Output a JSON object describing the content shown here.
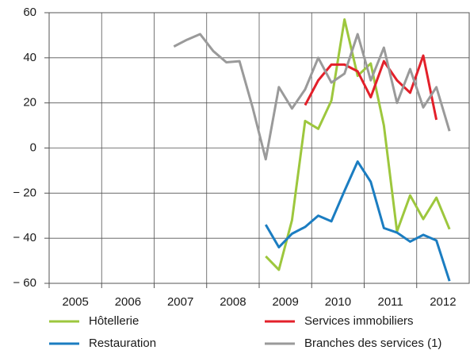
{
  "chart_data": {
    "type": "line",
    "x": [
      2007.375,
      2007.625,
      2007.875,
      2008.125,
      2008.375,
      2008.625,
      2008.875,
      2009.125,
      2009.375,
      2009.625,
      2009.875,
      2010.125,
      2010.375,
      2010.625,
      2010.875,
      2011.125,
      2011.375,
      2011.625,
      2011.875,
      2012.125,
      2012.375,
      2012.625
    ],
    "series": [
      {
        "name": "Hôtellerie",
        "color": "#9dc73d",
        "values": [
          null,
          null,
          null,
          null,
          null,
          null,
          null,
          -48,
          -54,
          -32,
          12,
          8.5,
          21,
          57,
          32,
          37.5,
          10,
          -37,
          -21,
          -31.5,
          -22,
          -36
        ]
      },
      {
        "name": "Services immobiliers",
        "color": "#e3202a",
        "values": [
          null,
          null,
          null,
          null,
          null,
          null,
          null,
          null,
          null,
          null,
          19,
          30,
          37,
          37,
          34,
          22.5,
          38.5,
          30,
          24.5,
          41,
          12.5,
          null
        ]
      },
      {
        "name": "Restauration",
        "color": "#1b7dc1",
        "values": [
          null,
          null,
          null,
          null,
          null,
          null,
          null,
          -34,
          -44,
          -38,
          -35,
          -30,
          -32.5,
          -19,
          -6,
          -15,
          -35.5,
          -37.5,
          -41.5,
          -38.5,
          -41,
          -59
        ]
      },
      {
        "name": "Branches des services (1)",
        "color": "#9a9a9a",
        "values": [
          45,
          48,
          50.5,
          43,
          38,
          38.5,
          18,
          -5,
          27,
          17.5,
          26,
          40,
          29,
          33,
          50.5,
          30,
          44.5,
          20,
          35,
          18,
          27,
          7.5
        ]
      }
    ],
    "xlim": [
      2005,
      2013
    ],
    "xticks": [
      2005,
      2006,
      2007,
      2008,
      2009,
      2010,
      2011,
      2012
    ],
    "ylim": [
      -60,
      60
    ],
    "yticks": [
      {
        "value": -60,
        "label": "− 60"
      },
      {
        "value": -40,
        "label": "− 40"
      },
      {
        "value": -20,
        "label": "− 20"
      },
      0,
      20,
      40,
      60
    ],
    "grid": true
  }
}
